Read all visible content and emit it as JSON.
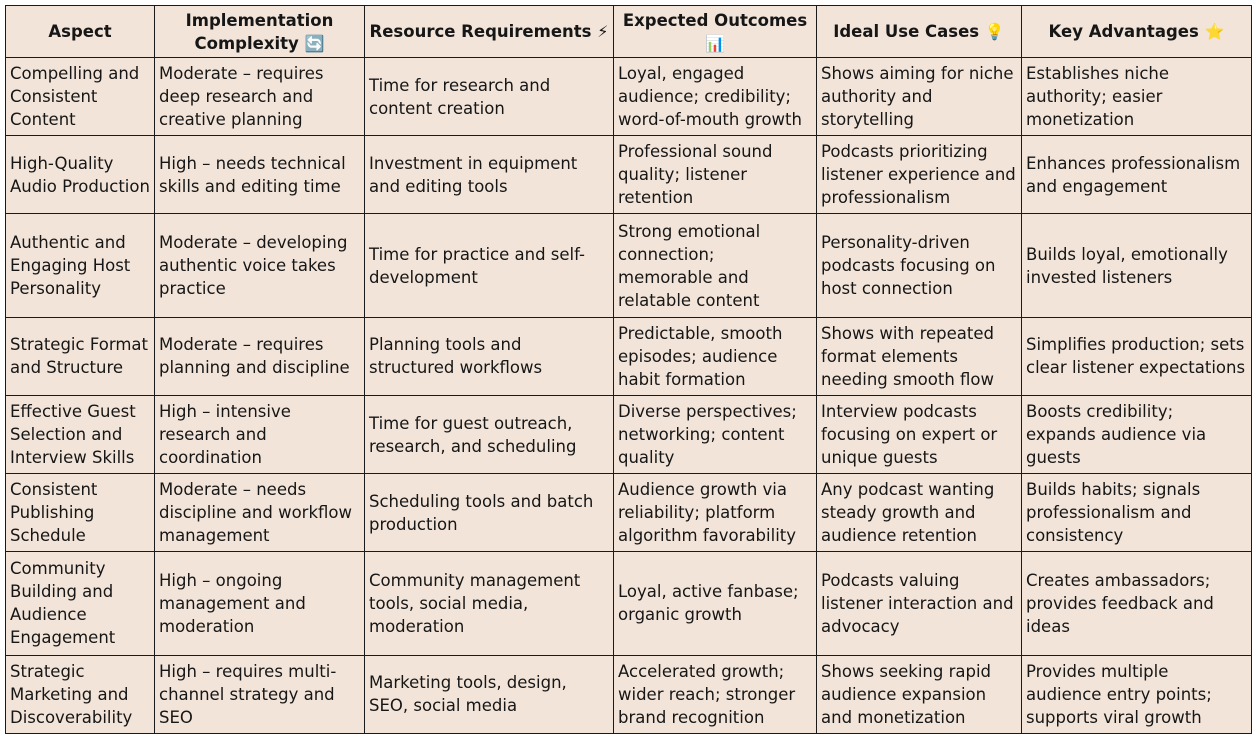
{
  "table": {
    "headers": [
      {
        "label": "Aspect",
        "icon": ""
      },
      {
        "label": "Implementation Complexity",
        "icon": "🔄"
      },
      {
        "label": "Resource Requirements",
        "icon": "⚡"
      },
      {
        "label": "Expected Outcomes",
        "icon": "📊"
      },
      {
        "label": "Ideal Use Cases",
        "icon": "💡"
      },
      {
        "label": "Key Advantages",
        "icon": "⭐"
      }
    ],
    "rows": [
      [
        "Compelling and Consistent Content",
        "Moderate – requires deep research and creative planning",
        "Time for research and content creation",
        "Loyal, engaged audience; credibility; word-of-mouth growth",
        "Shows aiming for niche authority and storytelling",
        "Establishes niche authority; easier monetization"
      ],
      [
        "High-Quality Audio Production",
        "High – needs technical skills and editing time",
        "Investment in equipment and editing tools",
        "Professional sound quality; listener retention",
        "Podcasts prioritizing listener experience and professionalism",
        "Enhances professionalism and engagement"
      ],
      [
        "Authentic and Engaging Host Personality",
        "Moderate – developing authentic voice takes practice",
        "Time for practice and self-development",
        "Strong emotional connection; memorable and relatable content",
        "Personality-driven podcasts focusing on host connection",
        "Builds loyal, emotionally invested listeners"
      ],
      [
        "Strategic Format and Structure",
        "Moderate – requires planning and discipline",
        "Planning tools and structured workflows",
        "Predictable, smooth episodes; audience habit formation",
        "Shows with repeated format elements needing smooth flow",
        "Simplifies production; sets clear listener expectations"
      ],
      [
        "Effective Guest Selection and Interview Skills",
        "High – intensive research and coordination",
        "Time for guest outreach, research, and scheduling",
        "Diverse perspectives; networking; content quality",
        "Interview podcasts focusing on expert or unique guests",
        "Boosts credibility; expands audience via guests"
      ],
      [
        "Consistent Publishing Schedule",
        "Moderate – needs discipline and workflow management",
        "Scheduling tools and batch production",
        "Audience growth via reliability; platform algorithm favorability",
        "Any podcast wanting steady growth and audience retention",
        "Builds habits; signals professionalism and consistency"
      ],
      [
        "Community Building and Audience Engagement",
        "High – ongoing management and moderation",
        "Community management tools, social media, moderation",
        "Loyal, active fanbase; organic growth",
        "Podcasts valuing listener interaction and advocacy",
        "Creates ambassadors; provides feedback and ideas"
      ],
      [
        "Strategic Marketing and Discoverability",
        "High – requires multi-channel strategy and SEO",
        "Marketing tools, design, SEO, social media",
        "Accelerated growth; wider reach; stronger brand recognition",
        "Shows seeking rapid audience expansion and monetization",
        "Provides multiple audience entry points; supports viral growth"
      ]
    ]
  }
}
